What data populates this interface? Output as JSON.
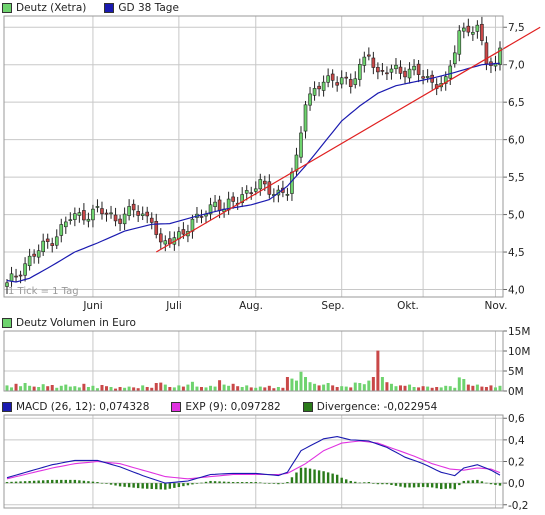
{
  "legends": {
    "price": [
      {
        "label": "Deutz (Xetra)",
        "color": "#6ed36e"
      },
      {
        "label": "GD 38 Tage",
        "color": "#1a1ab0"
      }
    ],
    "volume": [
      {
        "label": "Deutz Volumen in Euro",
        "color": "#6ed36e"
      }
    ],
    "macd": [
      {
        "label": "MACD (26, 12): 0,074328",
        "color": "#1a1ab0"
      },
      {
        "label": "EXP (9): 0,097282",
        "color": "#e033e0"
      },
      {
        "label": "Divergence: -0,022954",
        "color": "#2a7a1a"
      }
    ]
  },
  "tick_note": "1 Tick = 1 Tag",
  "colors": {
    "up": "#6ed36e",
    "down": "#c94848",
    "average": "#1a1ab0",
    "trendline": "#e02020",
    "grid": "#c8c8c8",
    "divergence": "#2a7a1a",
    "signal": "#e033e0"
  },
  "chart_data": [
    {
      "type": "candlestick",
      "title": "Deutz (Xetra)",
      "x_axis_labels": [
        "Juni",
        "Juli",
        "Aug.",
        "Sep.",
        "Okt.",
        "Nov."
      ],
      "y_tick_labels": [
        "4,0",
        "4,5",
        "5,0",
        "5,5",
        "6,0",
        "6,5",
        "7,0",
        "7,5"
      ],
      "ylim": [
        3.9,
        7.65
      ],
      "grid": true,
      "num_days": 110,
      "price_key_points": [
        [
          0,
          4.05
        ],
        [
          4,
          4.35
        ],
        [
          10,
          4.68
        ],
        [
          14,
          4.95
        ],
        [
          20,
          5.05
        ],
        [
          24,
          4.95
        ],
        [
          28,
          5.05
        ],
        [
          30,
          4.98
        ],
        [
          32,
          4.98
        ],
        [
          34,
          4.55
        ],
        [
          38,
          4.75
        ],
        [
          42,
          4.92
        ],
        [
          46,
          5.18
        ],
        [
          48,
          5.05
        ],
        [
          52,
          5.28
        ],
        [
          56,
          5.38
        ],
        [
          60,
          5.3
        ],
        [
          62,
          5.3
        ],
        [
          64,
          5.72
        ],
        [
          66,
          6.55
        ],
        [
          70,
          6.75
        ],
        [
          74,
          6.85
        ],
        [
          76,
          6.7
        ],
        [
          80,
          7.2
        ],
        [
          82,
          6.85
        ],
        [
          86,
          6.95
        ],
        [
          90,
          6.9
        ],
        [
          94,
          6.78
        ],
        [
          97,
          6.75
        ],
        [
          98,
          6.95
        ],
        [
          100,
          7.45
        ],
        [
          102,
          7.5
        ],
        [
          104,
          7.45
        ],
        [
          106,
          7.05
        ],
        [
          108,
          7.0
        ],
        [
          109,
          7.25
        ]
      ],
      "average_key_points": [
        [
          0,
          4.12
        ],
        [
          2,
          4.1
        ],
        [
          5,
          4.15
        ],
        [
          10,
          4.32
        ],
        [
          15,
          4.5
        ],
        [
          20,
          4.62
        ],
        [
          26,
          4.78
        ],
        [
          32,
          4.87
        ],
        [
          36,
          4.88
        ],
        [
          42,
          4.98
        ],
        [
          48,
          5.07
        ],
        [
          54,
          5.13
        ],
        [
          58,
          5.2
        ],
        [
          62,
          5.38
        ],
        [
          66,
          5.65
        ],
        [
          70,
          5.95
        ],
        [
          74,
          6.25
        ],
        [
          78,
          6.45
        ],
        [
          82,
          6.62
        ],
        [
          86,
          6.72
        ],
        [
          90,
          6.77
        ],
        [
          94,
          6.82
        ],
        [
          98,
          6.88
        ],
        [
          102,
          6.95
        ],
        [
          105,
          7.0
        ],
        [
          109,
          7.02
        ]
      ],
      "trendline": {
        "from": [
          33,
          4.5
        ],
        "to": [
          117,
          7.5
        ]
      },
      "series": [
        {
          "name": "Deutz (Xetra)"
        },
        {
          "name": "GD 38 Tage"
        }
      ]
    },
    {
      "type": "bar",
      "title": "Deutz Volumen in Euro",
      "y_tick_labels": [
        "0M",
        "5M",
        "10M",
        "15M"
      ],
      "ylim": [
        0,
        15
      ],
      "grid": true,
      "unit": "M EUR",
      "values": [
        1.4,
        0.9,
        1.8,
        1.2,
        2.0,
        1.3,
        1.1,
        1.0,
        1.7,
        1.2,
        1.5,
        0.8,
        1.3,
        1.6,
        1.1,
        1.2,
        0.9,
        1.8,
        1.0,
        1.3,
        0.7,
        1.5,
        1.2,
        1.0,
        0.6,
        1.0,
        0.8,
        1.1,
        0.9,
        0.7,
        1.4,
        1.0,
        0.8,
        2.0,
        2.1,
        1.6,
        1.0,
        0.9,
        1.4,
        1.1,
        1.6,
        2.3,
        1.1,
        1.0,
        0.9,
        1.3,
        1.1,
        2.7,
        1.6,
        1.3,
        1.8,
        1.2,
        1.0,
        1.4,
        0.9,
        0.8,
        1.1,
        0.9,
        1.3,
        0.7,
        1.0,
        0.8,
        3.5,
        3.1,
        2.6,
        4.8,
        3.5,
        2.2,
        1.8,
        1.4,
        1.6,
        2.0,
        1.4,
        1.0,
        1.2,
        1.1,
        0.9,
        2.1,
        2.0,
        1.7,
        2.6,
        3.5,
        10.1,
        3.5,
        2.2,
        1.8,
        1.2,
        1.4,
        1.3,
        1.6,
        1.0,
        0.9,
        1.2,
        1.1,
        0.8,
        1.0,
        0.9,
        1.3,
        1.2,
        0.8,
        3.4,
        3.0,
        1.6,
        1.3,
        1.6,
        1.1,
        1.0,
        1.4,
        0.9,
        1.3
      ]
    },
    {
      "type": "line",
      "title": "MACD (26, 12)",
      "y_tick_labels": [
        "-0,2",
        "0,0",
        "0,2",
        "0,4",
        "0,6"
      ],
      "ylim": [
        -0.23,
        0.63
      ],
      "grid": true,
      "macd_key_points": [
        [
          0,
          0.05
        ],
        [
          5,
          0.11
        ],
        [
          10,
          0.17
        ],
        [
          15,
          0.21
        ],
        [
          20,
          0.21
        ],
        [
          25,
          0.15
        ],
        [
          30,
          0.07
        ],
        [
          35,
          0.0
        ],
        [
          40,
          0.02
        ],
        [
          45,
          0.08
        ],
        [
          50,
          0.09
        ],
        [
          55,
          0.09
        ],
        [
          60,
          0.07
        ],
        [
          62,
          0.1
        ],
        [
          65,
          0.3
        ],
        [
          70,
          0.41
        ],
        [
          73,
          0.43
        ],
        [
          76,
          0.4
        ],
        [
          80,
          0.39
        ],
        [
          84,
          0.33
        ],
        [
          88,
          0.24
        ],
        [
          92,
          0.18
        ],
        [
          96,
          0.1
        ],
        [
          99,
          0.07
        ],
        [
          101,
          0.14
        ],
        [
          104,
          0.17
        ],
        [
          107,
          0.12
        ],
        [
          109,
          0.074
        ]
      ],
      "signal_key_points": [
        [
          0,
          0.04
        ],
        [
          5,
          0.09
        ],
        [
          10,
          0.14
        ],
        [
          15,
          0.18
        ],
        [
          20,
          0.2
        ],
        [
          25,
          0.18
        ],
        [
          30,
          0.12
        ],
        [
          35,
          0.06
        ],
        [
          40,
          0.04
        ],
        [
          45,
          0.06
        ],
        [
          50,
          0.08
        ],
        [
          55,
          0.08
        ],
        [
          60,
          0.08
        ],
        [
          62,
          0.09
        ],
        [
          66,
          0.18
        ],
        [
          70,
          0.3
        ],
        [
          74,
          0.37
        ],
        [
          78,
          0.39
        ],
        [
          82,
          0.37
        ],
        [
          86,
          0.31
        ],
        [
          90,
          0.25
        ],
        [
          94,
          0.18
        ],
        [
          98,
          0.13
        ],
        [
          101,
          0.12
        ],
        [
          104,
          0.14
        ],
        [
          107,
          0.13
        ],
        [
          109,
          0.097
        ]
      ],
      "series": [
        {
          "name": "MACD (26, 12)"
        },
        {
          "name": "EXP (9)"
        },
        {
          "name": "Divergence"
        }
      ]
    }
  ]
}
